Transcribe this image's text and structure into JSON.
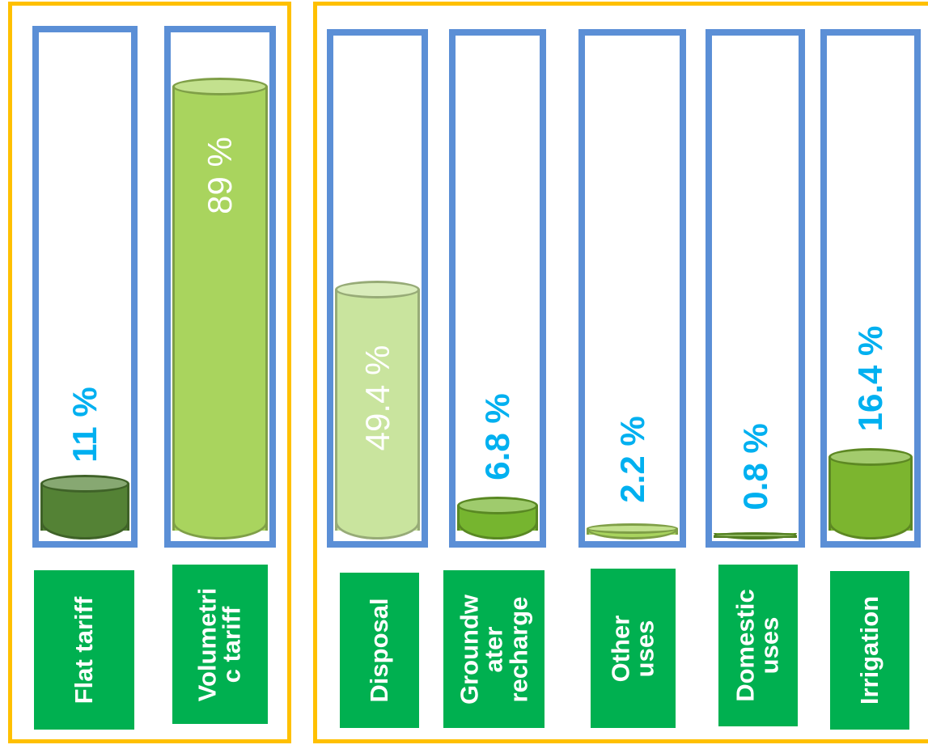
{
  "chart_data": [
    {
      "type": "bar",
      "categories": [
        "Flat tariff",
        "Volumetric tariff"
      ],
      "category_lines": [
        [
          "Flat tariff"
        ],
        [
          "Volumetri",
          "c tariff"
        ]
      ],
      "values": [
        11,
        89
      ],
      "value_labels": [
        "11 %",
        "89 %"
      ],
      "ylim": [
        0,
        100
      ],
      "colors": [
        "#548235",
        "#A9D45E"
      ],
      "label_colors": [
        "#00B0F0",
        "#FFFFFF"
      ],
      "label_bold": [
        true,
        false
      ]
    },
    {
      "type": "bar",
      "categories": [
        "Disposal",
        "Groundwater recharge",
        "Other uses",
        "Domestic uses",
        "Irrigation"
      ],
      "category_lines": [
        [
          "Disposal"
        ],
        [
          "Groundw",
          "ater",
          "recharge"
        ],
        [
          "Other",
          "uses"
        ],
        [
          "Domestic",
          "uses"
        ],
        [
          "Irrigation"
        ]
      ],
      "values": [
        49.4,
        6.8,
        2.2,
        0.8,
        16.4
      ],
      "value_labels": [
        "49.4 %",
        "6.8 %",
        "2.2 %",
        "0.8 %",
        "16.4 %"
      ],
      "ylim": [
        0,
        100
      ],
      "colors": [
        "#C9E49E",
        "#76B52F",
        "#A9D45E",
        "#6FA82D",
        "#7CB52F"
      ],
      "label_colors": [
        "#FFFFFF",
        "#00B0F0",
        "#00B0F0",
        "#00B0F0",
        "#00B0F0"
      ],
      "label_bold": [
        false,
        true,
        true,
        true,
        true
      ]
    }
  ],
  "style": {
    "frame_color": "#FFC000",
    "tube_color": "#5B8FD6",
    "category_box_color": "#00B050",
    "category_text_color": "#FFFFFF"
  }
}
